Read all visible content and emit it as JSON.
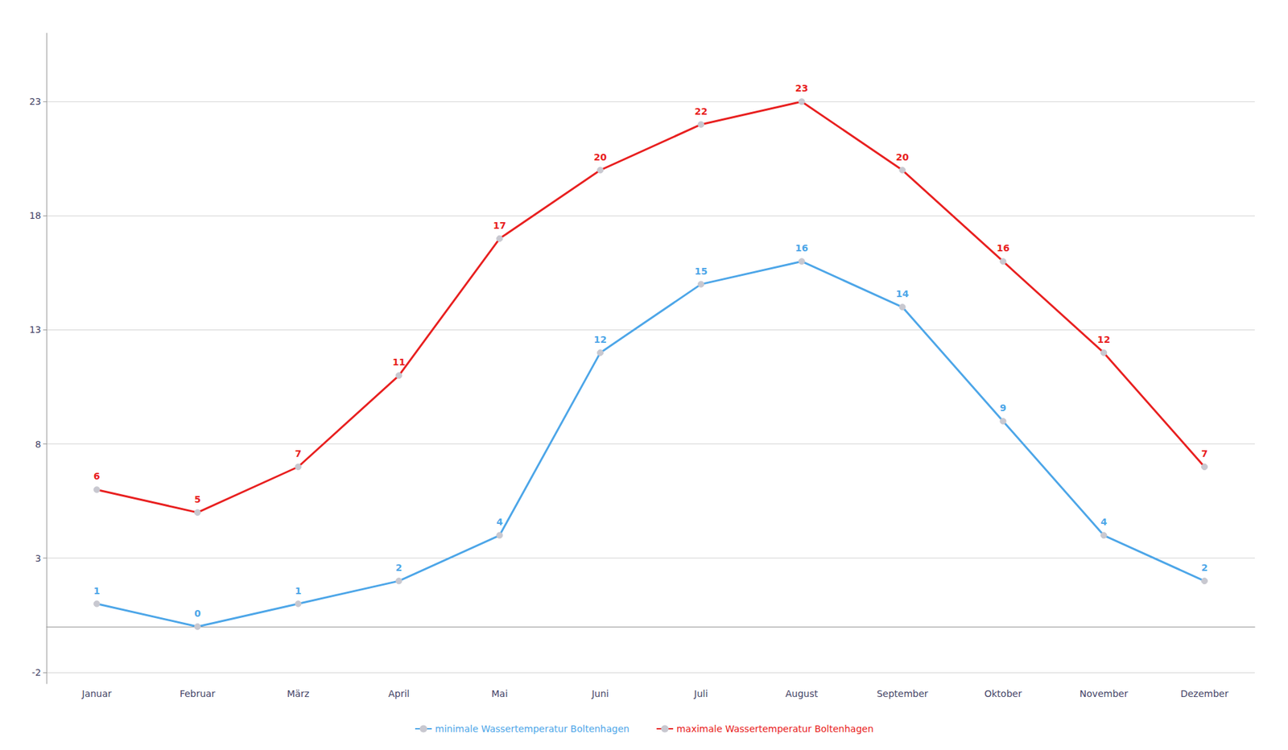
{
  "chart_data": {
    "type": "line",
    "categories": [
      "Januar",
      "Februar",
      "März",
      "April",
      "Mai",
      "Juni",
      "Juli",
      "August",
      "September",
      "Oktober",
      "November",
      "Dezember"
    ],
    "series": [
      {
        "name": "minimale Wassertemperatur Boltenhagen",
        "color": "#4da6e8",
        "values": [
          1,
          0,
          1,
          2,
          4,
          12,
          15,
          16,
          14,
          9,
          4,
          2
        ]
      },
      {
        "name": "maximale Wassertemperatur Boltenhagen",
        "color": "#e82020",
        "values": [
          6,
          5,
          7,
          11,
          17,
          20,
          22,
          23,
          20,
          16,
          12,
          7
        ]
      }
    ],
    "ylim": [
      -2.5,
      26
    ],
    "yticks": [
      -2,
      3,
      8,
      13,
      18,
      23
    ],
    "grid": true,
    "legend": "bottom",
    "marker": "circle",
    "data_labels": true
  }
}
